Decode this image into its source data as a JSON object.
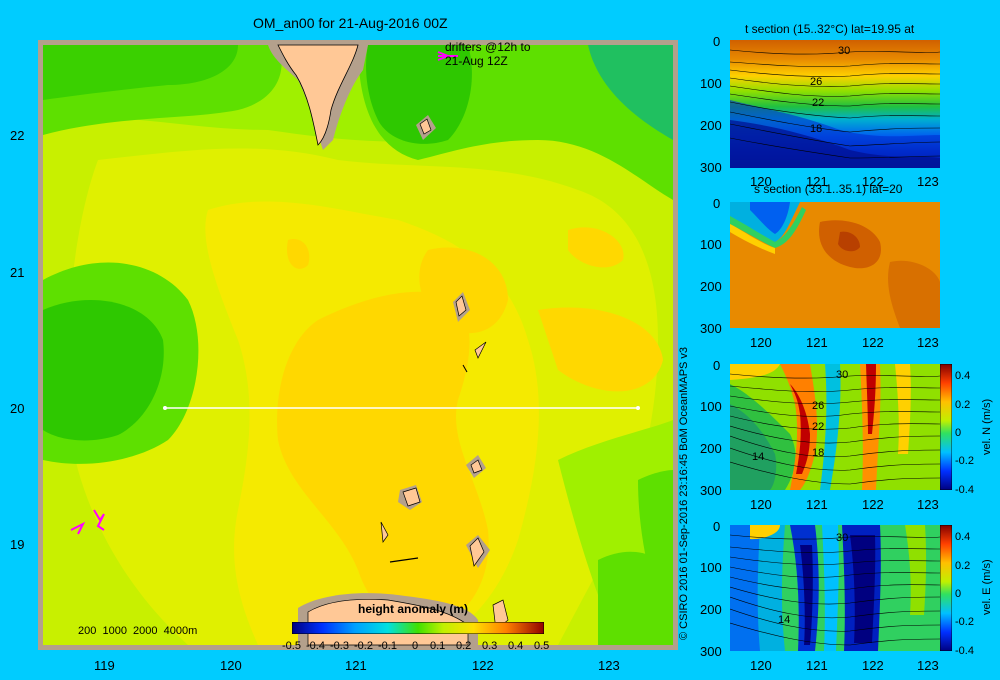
{
  "map": {
    "title": "OM_an00 for 21-Aug-2016 00Z",
    "drifters_label_line1": "drifters @12h to",
    "drifters_label_line2": "21-Aug 12Z",
    "x_ticks": [
      "119",
      "120",
      "121",
      "122",
      "123"
    ],
    "y_ticks": [
      "22",
      "21",
      "20",
      "19"
    ],
    "depth_legend": "200  1000  2000  4000m",
    "colorbar_title": "height anomaly  (m)",
    "colorbar_ticks": [
      "-0.5",
      "-0.4",
      "-0.3",
      "-0.2",
      "-0.1",
      "0",
      "0.1",
      "0.2",
      "0.3",
      "0.4",
      "0.5"
    ],
    "colorbar_range": [
      -0.5,
      0.5
    ],
    "section_line": {
      "lat": 20,
      "lon_start": 119.5,
      "lon_end": 123.2
    },
    "colors": {
      "background": "#00ccff",
      "land": "#ffc896",
      "shelf": "#b4a08c",
      "drifter": "#ff00ff"
    }
  },
  "credit": "© CSIRO 2016   01-Sep-2016 23:16:45 BoM OceanMAPS v3",
  "panels": [
    {
      "id": "temperature",
      "title": "t section (15..32°C) lat=19.95 at",
      "x_ticks": [
        "120",
        "121",
        "122",
        "123"
      ],
      "y_ticks": [
        "0",
        "100",
        "200",
        "300"
      ],
      "contour_labels": [
        "30",
        "26",
        "22",
        "18"
      ]
    },
    {
      "id": "salinity",
      "title": "s section (33.1..35.1) lat=20",
      "x_ticks": [
        "120",
        "121",
        "122",
        "123"
      ],
      "y_ticks": [
        "0",
        "100",
        "200",
        "300"
      ],
      "contour_labels": []
    },
    {
      "id": "vel-north",
      "title": "",
      "x_ticks": [
        "120",
        "121",
        "122",
        "123"
      ],
      "y_ticks": [
        "0",
        "100",
        "200",
        "300"
      ],
      "contour_labels": [
        "30",
        "26",
        "22",
        "18",
        "14"
      ],
      "colorbar_label": "vel. N (m/s)",
      "colorbar_ticks": [
        "0.4",
        "0.2",
        "0",
        "-0.2",
        "-0.4"
      ]
    },
    {
      "id": "vel-east",
      "title": "",
      "x_ticks": [
        "120",
        "121",
        "122",
        "123"
      ],
      "y_ticks": [
        "0",
        "100",
        "200",
        "300"
      ],
      "contour_labels": [
        "30",
        "14"
      ],
      "colorbar_label": "vel. E (m/s)",
      "colorbar_ticks": [
        "0.4",
        "0.2",
        "0",
        "-0.2",
        "-0.4"
      ]
    }
  ]
}
